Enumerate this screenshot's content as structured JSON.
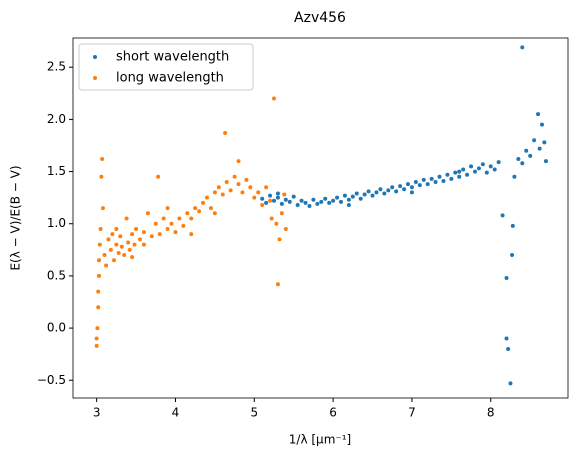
{
  "chart_data": {
    "type": "scatter",
    "title": "Azv456",
    "x_label": "1/λ [μm⁻¹]",
    "y_label": "E(λ − V)/E(B − V)",
    "xlim": [
      2.7,
      8.98
    ],
    "ylim": [
      -0.67,
      2.78
    ],
    "xticks": [
      3,
      4,
      5,
      6,
      7,
      8
    ],
    "yticks": [
      {
        "value": -0.5,
        "label": "−0.5"
      },
      {
        "value": 0,
        "label": "0.0"
      },
      0.5,
      {
        "value": 1,
        "label": "1.0"
      },
      1.5,
      {
        "value": 2,
        "label": "2.0"
      },
      2.5
    ],
    "legend": "upper left",
    "series": [
      {
        "name": "short wavelength",
        "color": "#1f77b4",
        "x": [
          5.1,
          5.15,
          5.2,
          5.25,
          5.3,
          5.35,
          5.4,
          5.45,
          5.5,
          5.55,
          5.6,
          5.65,
          5.7,
          5.75,
          5.8,
          5.85,
          5.9,
          5.95,
          6.0,
          6.05,
          6.1,
          6.15,
          6.2,
          6.25,
          6.3,
          6.35,
          6.4,
          6.45,
          6.5,
          6.55,
          6.6,
          6.65,
          6.7,
          6.75,
          6.8,
          6.85,
          6.9,
          6.95,
          7.0,
          7.05,
          7.1,
          7.15,
          7.2,
          7.25,
          7.3,
          7.35,
          7.4,
          7.45,
          7.5,
          7.55,
          7.6,
          7.65,
          7.7,
          7.75,
          7.8,
          7.85,
          7.9,
          7.95,
          8.0,
          8.05,
          8.1,
          8.15,
          8.2,
          8.2,
          8.22,
          8.25,
          8.27,
          8.28,
          8.3,
          8.35,
          8.4,
          8.4,
          8.45,
          8.5,
          8.55,
          8.6,
          8.62,
          8.65,
          8.7,
          8.68,
          5.3,
          6.2,
          7.0,
          7.6
        ],
        "values": [
          1.24,
          1.2,
          1.27,
          1.22,
          1.25,
          1.19,
          1.23,
          1.21,
          1.26,
          1.18,
          1.22,
          1.2,
          1.17,
          1.23,
          1.19,
          1.21,
          1.24,
          1.2,
          1.22,
          1.25,
          1.21,
          1.27,
          1.23,
          1.26,
          1.29,
          1.24,
          1.28,
          1.31,
          1.27,
          1.3,
          1.33,
          1.29,
          1.32,
          1.35,
          1.31,
          1.36,
          1.33,
          1.38,
          1.35,
          1.4,
          1.37,
          1.42,
          1.38,
          1.43,
          1.4,
          1.45,
          1.41,
          1.47,
          1.43,
          1.49,
          1.45,
          1.52,
          1.47,
          1.55,
          1.5,
          1.53,
          1.57,
          1.49,
          1.55,
          1.52,
          1.59,
          1.08,
          0.48,
          -0.1,
          -0.2,
          -0.53,
          0.7,
          0.98,
          1.45,
          1.62,
          2.69,
          1.58,
          1.7,
          1.65,
          1.8,
          2.05,
          1.72,
          1.95,
          1.6,
          1.78,
          1.29,
          1.18,
          1.3,
          1.5
        ]
      },
      {
        "name": "long wavelength",
        "color": "#ff7f0e",
        "x": [
          3.0,
          3.0,
          3.01,
          3.02,
          3.02,
          3.03,
          3.03,
          3.04,
          3.05,
          3.07,
          3.06,
          3.08,
          3.1,
          3.12,
          3.15,
          3.18,
          3.2,
          3.22,
          3.25,
          3.28,
          3.3,
          3.32,
          3.35,
          3.38,
          3.4,
          3.42,
          3.45,
          3.48,
          3.5,
          3.55,
          3.6,
          3.65,
          3.7,
          3.75,
          3.78,
          3.8,
          3.85,
          3.9,
          3.95,
          4.0,
          4.05,
          4.1,
          4.15,
          4.2,
          4.25,
          4.3,
          4.35,
          4.4,
          4.45,
          4.5,
          4.55,
          4.6,
          4.63,
          4.65,
          4.7,
          4.75,
          4.8,
          4.85,
          4.9,
          4.95,
          5.0,
          5.05,
          5.1,
          5.15,
          5.2,
          5.22,
          5.25,
          5.28,
          5.3,
          5.32,
          5.35,
          5.38,
          5.4,
          3.25,
          3.45,
          3.6,
          3.9,
          4.2,
          4.5,
          4.8
        ],
        "values": [
          -0.17,
          -0.1,
          0.0,
          0.2,
          0.35,
          0.5,
          0.65,
          0.8,
          0.95,
          1.62,
          1.45,
          1.15,
          0.7,
          0.6,
          0.85,
          0.75,
          0.9,
          0.65,
          0.8,
          0.72,
          0.88,
          0.78,
          0.7,
          1.05,
          0.82,
          0.75,
          0.9,
          0.8,
          0.95,
          0.85,
          0.92,
          1.1,
          0.88,
          1.0,
          1.45,
          0.9,
          1.05,
          0.95,
          1.0,
          0.92,
          1.05,
          0.98,
          1.1,
          1.05,
          1.15,
          1.12,
          1.2,
          1.25,
          1.15,
          1.3,
          1.35,
          1.28,
          1.87,
          1.4,
          1.32,
          1.45,
          1.38,
          1.3,
          1.42,
          1.35,
          1.25,
          1.3,
          1.18,
          1.35,
          1.22,
          1.05,
          2.2,
          1.0,
          0.42,
          0.85,
          1.1,
          1.28,
          0.95,
          0.95,
          0.68,
          0.8,
          1.15,
          0.9,
          1.1,
          1.6
        ]
      }
    ]
  }
}
